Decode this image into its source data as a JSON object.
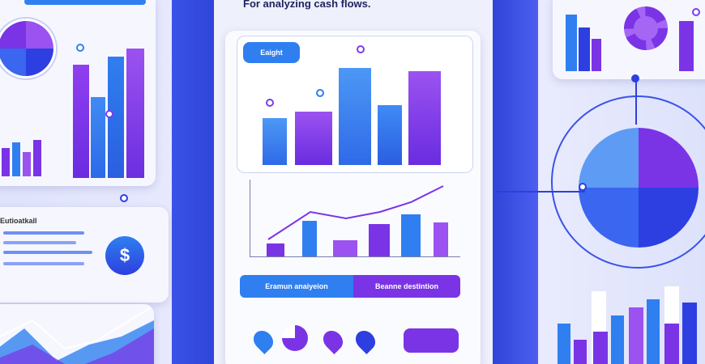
{
  "header": {
    "tagline": "For analyzing cash flows."
  },
  "center_panel": {
    "top_chart_label": "Eaight",
    "button_left": "Eramun anaiyeion",
    "button_right": "Beanne destintion"
  },
  "left_panel": {
    "card_heading": "Eutioatkall",
    "currency_symbol": "$"
  },
  "colors": {
    "purple": "#7a34e6",
    "blue": "#2f7ff0",
    "deep_blue": "#2d3fe0",
    "violet": "#9b52f0",
    "light": "#f6f7fe"
  },
  "icons": [
    "dollar-icon",
    "gear-icon",
    "map-pin-icon",
    "pie-chart-icon",
    "bar-chart-icon",
    "line-chart-icon"
  ]
}
